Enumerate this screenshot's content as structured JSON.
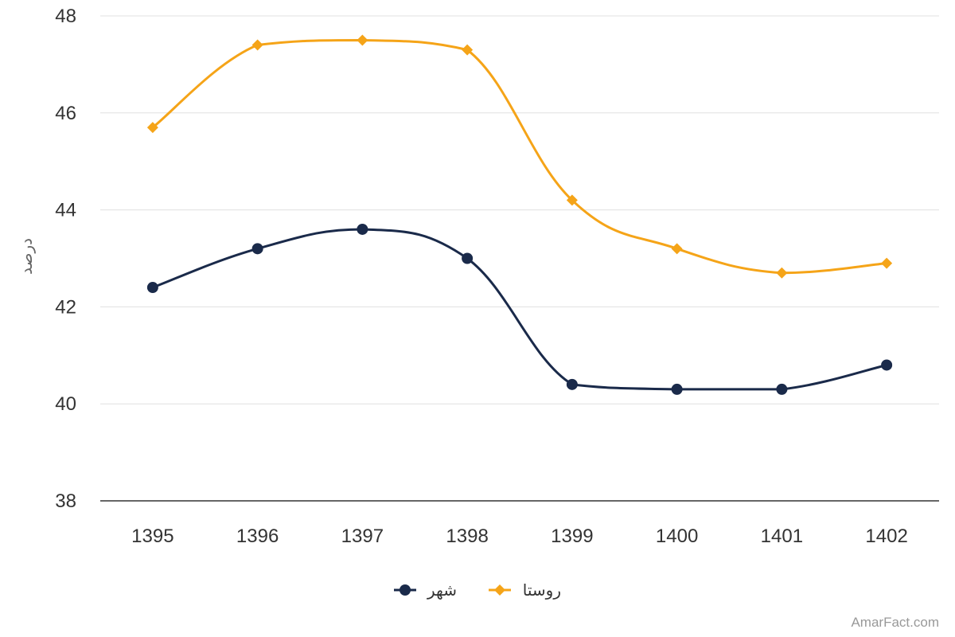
{
  "chart_data": {
    "type": "line",
    "title": "",
    "xlabel": "",
    "ylabel": "درصد",
    "categories": [
      "1395",
      "1396",
      "1397",
      "1398",
      "1399",
      "1400",
      "1401",
      "1402"
    ],
    "ylim": [
      38,
      48
    ],
    "yticks": [
      "38",
      "40",
      "42",
      "44",
      "46",
      "48"
    ],
    "grid": true,
    "legend_position": "bottom-center",
    "series": [
      {
        "name": "شهر",
        "values": [
          42.4,
          43.2,
          43.6,
          43.0,
          40.4,
          40.3,
          40.3,
          40.8
        ],
        "color": "#1a2a4a",
        "marker": "circle"
      },
      {
        "name": "روستا",
        "values": [
          45.7,
          47.4,
          47.5,
          47.3,
          44.2,
          43.2,
          42.7,
          42.9
        ],
        "color": "#f5a418",
        "marker": "diamond"
      }
    ]
  },
  "credit": "AmarFact.com"
}
